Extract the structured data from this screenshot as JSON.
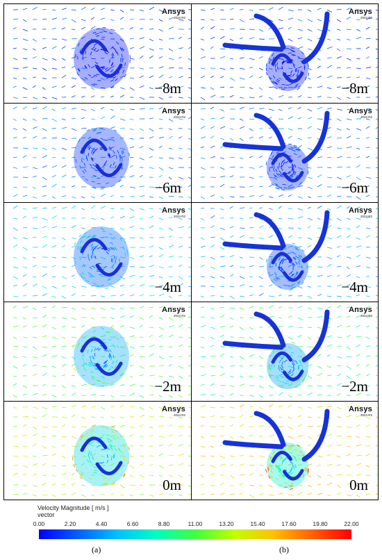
{
  "brand": {
    "name": "Ansys",
    "version": "2024 R2"
  },
  "rows": [
    {
      "position": "−8m",
      "left_level": 0.05,
      "right_level": 0.05
    },
    {
      "position": "−6m",
      "left_level": 0.12,
      "right_level": 0.1
    },
    {
      "position": "−4m",
      "left_level": 0.25,
      "right_level": 0.18
    },
    {
      "position": "−2m",
      "left_level": 0.45,
      "right_level": 0.4
    },
    {
      "position": "0m",
      "left_level": 0.6,
      "right_level": 0.7
    }
  ],
  "legend": {
    "title": "Velocity Magnitude [ m/s ]",
    "subtitle": "vector",
    "ticks": [
      "0.00",
      "2.20",
      "4.40",
      "6.60",
      "8.80",
      "11.00",
      "13.20",
      "15.40",
      "17.60",
      "19.80",
      "22.00"
    ]
  },
  "subfigure_labels": {
    "a": "(a)",
    "b": "(b)"
  }
}
